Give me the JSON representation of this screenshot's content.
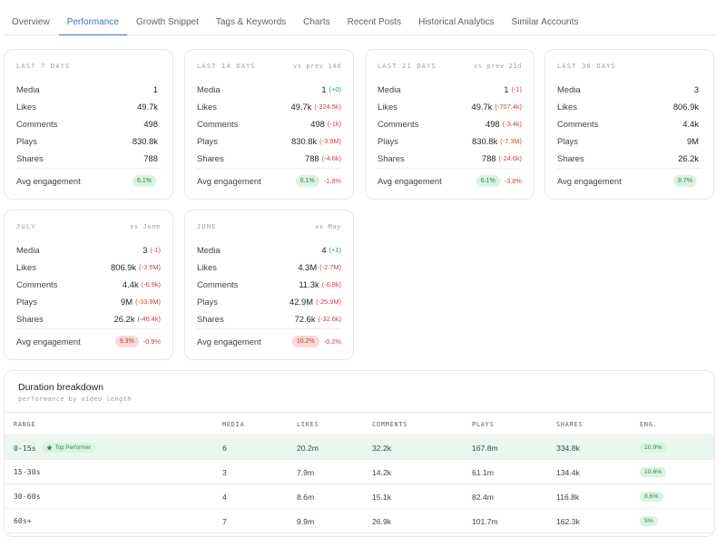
{
  "tabs": [
    {
      "label": "Overview",
      "active": false
    },
    {
      "label": "Performance",
      "active": true
    },
    {
      "label": "Growth Snippet",
      "active": false
    },
    {
      "label": "Tags & Keywords",
      "active": false
    },
    {
      "label": "Charts",
      "active": false
    },
    {
      "label": "Recent Posts",
      "active": false
    },
    {
      "label": "Historical Analytics",
      "active": false
    },
    {
      "label": "Similar Accounts",
      "active": false
    }
  ],
  "row_labels": {
    "media": "Media",
    "likes": "Likes",
    "comments": "Comments",
    "plays": "Plays",
    "shares": "Shares",
    "avg_engagement": "Avg engagement"
  },
  "cards": [
    {
      "period": "LAST 7 DAYS",
      "compare": "",
      "media": {
        "value": "1",
        "delta": ""
      },
      "likes": {
        "value": "49.7k",
        "delta": ""
      },
      "comments": {
        "value": "498",
        "delta": ""
      },
      "plays": {
        "value": "830.8k",
        "delta": ""
      },
      "shares": {
        "value": "788",
        "delta": ""
      },
      "engagement": {
        "value": "6.1%",
        "delta": "",
        "tone": "green"
      }
    },
    {
      "period": "LAST 14 DAYS",
      "compare": "vs prev 14d",
      "media": {
        "value": "1",
        "delta": "(+0)"
      },
      "likes": {
        "value": "49.7k",
        "delta": "(-324.5k)"
      },
      "comments": {
        "value": "498",
        "delta": "(-1k)"
      },
      "plays": {
        "value": "830.8k",
        "delta": "(-3.9M)"
      },
      "shares": {
        "value": "788",
        "delta": "(-4.6k)"
      },
      "engagement": {
        "value": "6.1%",
        "delta": "-1.9%",
        "tone": "green"
      }
    },
    {
      "period": "LAST 21 DAYS",
      "compare": "vs prev 21d",
      "media": {
        "value": "1",
        "delta": "(-1)"
      },
      "likes": {
        "value": "49.7k",
        "delta": "(-707.4k)"
      },
      "comments": {
        "value": "498",
        "delta": "(-3.4k)"
      },
      "plays": {
        "value": "830.8k",
        "delta": "(-7.3M)"
      },
      "shares": {
        "value": "788",
        "delta": "(-24.6k)"
      },
      "engagement": {
        "value": "6.1%",
        "delta": "-3.8%",
        "tone": "green"
      }
    },
    {
      "period": "LAST 30 DAYS",
      "compare": "",
      "media": {
        "value": "3",
        "delta": ""
      },
      "likes": {
        "value": "806.9k",
        "delta": ""
      },
      "comments": {
        "value": "4.4k",
        "delta": ""
      },
      "plays": {
        "value": "9M",
        "delta": ""
      },
      "shares": {
        "value": "26.2k",
        "delta": ""
      },
      "engagement": {
        "value": "8.7%",
        "delta": "",
        "tone": "green"
      }
    },
    {
      "period": "JULY",
      "compare": "vs June",
      "media": {
        "value": "3",
        "delta": "(-1)"
      },
      "likes": {
        "value": "806.9k",
        "delta": "(-3.5M)"
      },
      "comments": {
        "value": "4.4k",
        "delta": "(-6.9k)"
      },
      "plays": {
        "value": "9M",
        "delta": "(-33.9M)"
      },
      "shares": {
        "value": "26.2k",
        "delta": "(-46.4k)"
      },
      "engagement": {
        "value": "9.3%",
        "delta": "-0.9%",
        "tone": "red"
      }
    },
    {
      "period": "JUNE",
      "compare": "vs May",
      "media": {
        "value": "4",
        "delta": "(+1)"
      },
      "likes": {
        "value": "4.3M",
        "delta": "(-2.7M)"
      },
      "comments": {
        "value": "11.3k",
        "delta": "(-6.8k)"
      },
      "plays": {
        "value": "42.9M",
        "delta": "(-25.9M)"
      },
      "shares": {
        "value": "72.6k",
        "delta": "(-32.6k)"
      },
      "engagement": {
        "value": "10.2%",
        "delta": "-0.2%",
        "tone": "red"
      }
    }
  ],
  "duration": {
    "title": "Duration breakdown",
    "subtitle": "performance by video length",
    "headers": [
      "RANGE",
      "MEDIA",
      "LIKES",
      "COMMENTS",
      "PLAYS",
      "SHARES",
      "ENG."
    ],
    "top_badge": "Top Performer",
    "rows": [
      {
        "range": "0-15s",
        "media": "6",
        "likes": "20.2m",
        "comments": "32.2k",
        "plays": "167.8m",
        "shares": "334.8k",
        "eng": "10.9%",
        "top": true
      },
      {
        "range": "15-30s",
        "media": "3",
        "likes": "7.9m",
        "comments": "14.2k",
        "plays": "61.1m",
        "shares": "134.4k",
        "eng": "10.6%",
        "top": false
      },
      {
        "range": "30-60s",
        "media": "4",
        "likes": "8.6m",
        "comments": "15.1k",
        "plays": "82.4m",
        "shares": "116.8k",
        "eng": "8.6%",
        "top": false
      },
      {
        "range": "60s+",
        "media": "7",
        "likes": "9.9m",
        "comments": "26.9k",
        "plays": "101.7m",
        "shares": "162.3k",
        "eng": "9%",
        "top": false
      }
    ]
  },
  "colors": {
    "accent": "#3b6fd8",
    "negative": "#d2453a",
    "positive": "#2fa05a",
    "pill_green_bg": "#d9f3e3",
    "pill_red_bg": "#fbd9d7",
    "top_row_bg": "#eaf7ef"
  }
}
